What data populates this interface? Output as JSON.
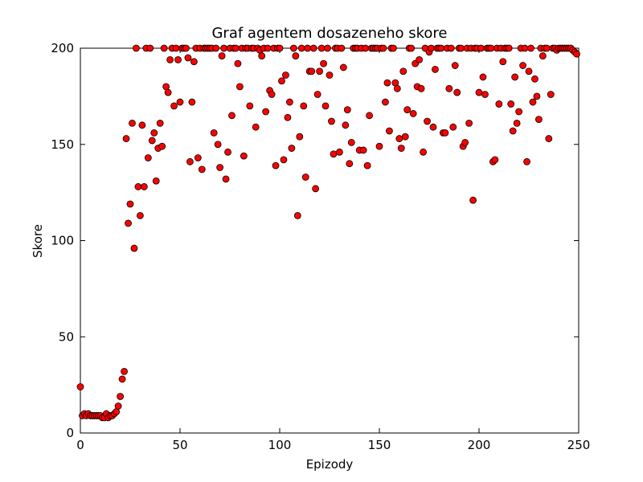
{
  "chart_data": {
    "type": "scatter",
    "title": "Graf agentem dosazeneho skore",
    "xlabel": "Epizody",
    "ylabel": "Skore",
    "x": [
      0,
      1,
      2,
      3,
      4,
      5,
      6,
      7,
      8,
      9,
      10,
      11,
      12,
      13,
      14,
      15,
      16,
      17,
      18,
      19,
      20,
      21,
      22,
      23,
      24,
      25,
      26,
      27,
      28,
      29,
      30,
      31,
      32,
      33,
      34,
      35,
      36,
      37,
      38,
      39,
      40,
      41,
      42,
      43,
      44,
      45,
      46,
      47,
      48,
      49,
      50,
      51,
      52,
      53,
      54,
      55,
      56,
      57,
      58,
      59,
      60,
      61,
      62,
      63,
      64,
      65,
      66,
      67,
      68,
      69,
      70,
      71,
      72,
      73,
      74,
      75,
      76,
      77,
      78,
      79,
      80,
      81,
      82,
      83,
      84,
      85,
      86,
      87,
      88,
      89,
      90,
      91,
      92,
      93,
      94,
      95,
      96,
      97,
      98,
      99,
      100,
      101,
      102,
      103,
      104,
      105,
      106,
      107,
      108,
      109,
      110,
      111,
      112,
      113,
      114,
      115,
      116,
      117,
      118,
      119,
      120,
      121,
      122,
      123,
      124,
      125,
      126,
      127,
      128,
      129,
      130,
      131,
      132,
      133,
      134,
      135,
      136,
      137,
      138,
      139,
      140,
      141,
      142,
      143,
      144,
      145,
      146,
      147,
      148,
      149,
      150,
      151,
      152,
      153,
      154,
      155,
      156,
      157,
      158,
      159,
      160,
      161,
      162,
      163,
      164,
      165,
      166,
      167,
      168,
      169,
      170,
      171,
      172,
      173,
      174,
      175,
      176,
      177,
      178,
      179,
      180,
      181,
      182,
      183,
      184,
      185,
      186,
      187,
      188,
      189,
      190,
      191,
      192,
      193,
      194,
      195,
      196,
      197,
      198,
      199,
      200,
      201,
      202,
      203,
      204,
      205,
      206,
      207,
      208,
      209,
      210,
      211,
      212,
      213,
      214,
      215,
      216,
      217,
      218,
      219,
      220,
      221,
      222,
      223,
      224,
      225,
      226,
      227,
      228,
      229,
      230,
      231,
      232,
      233,
      234,
      235,
      236,
      237,
      238,
      239,
      240,
      241,
      242,
      243,
      244,
      245,
      246,
      247,
      248,
      249
    ],
    "values": [
      24,
      9,
      10,
      9,
      10,
      9,
      9,
      9,
      9,
      9,
      9,
      8,
      8,
      10,
      8,
      9,
      9,
      10,
      11,
      14,
      19,
      28,
      32,
      153,
      109,
      119,
      161,
      96,
      200,
      128,
      113,
      160,
      128,
      200,
      143,
      200,
      152,
      156,
      131,
      148,
      161,
      149,
      200,
      180,
      177,
      194,
      200,
      170,
      200,
      194,
      172,
      200,
      200,
      200,
      195,
      141,
      172,
      193,
      200,
      143,
      200,
      137,
      200,
      200,
      200,
      200,
      200,
      156,
      200,
      150,
      138,
      196,
      200,
      132,
      146,
      200,
      165,
      200,
      200,
      192,
      180,
      200,
      144,
      200,
      200,
      170,
      200,
      200,
      159,
      200,
      199,
      196,
      200,
      167,
      200,
      178,
      176,
      200,
      139,
      200,
      200,
      183,
      142,
      186,
      164,
      172,
      148,
      200,
      196,
      113,
      154,
      200,
      170,
      133,
      200,
      188,
      188,
      200,
      127,
      176,
      188,
      200,
      192,
      170,
      200,
      186,
      162,
      145,
      200,
      200,
      146,
      200,
      190,
      160,
      168,
      140,
      151,
      200,
      200,
      200,
      147,
      200,
      147,
      200,
      139,
      165,
      200,
      200,
      200,
      200,
      149,
      200,
      200,
      172,
      182,
      157,
      200,
      200,
      182,
      179,
      153,
      148,
      188,
      154,
      168,
      200,
      200,
      166,
      192,
      180,
      194,
      179,
      146,
      200,
      162,
      198,
      200,
      159,
      189,
      200,
      200,
      200,
      156,
      156,
      200,
      179,
      200,
      159,
      191,
      177,
      200,
      200,
      149,
      151,
      200,
      161,
      200,
      121,
      200,
      200,
      177,
      200,
      185,
      176,
      200,
      200,
      200,
      141,
      142,
      200,
      171,
      200,
      193,
      200,
      200,
      200,
      171,
      157,
      185,
      161,
      167,
      200,
      191,
      200,
      141,
      188,
      200,
      172,
      184,
      175,
      163,
      200,
      196,
      200,
      200,
      153,
      176,
      200,
      200,
      199,
      200,
      200,
      200,
      200,
      200,
      200,
      200,
      199,
      198,
      197
    ],
    "color": "#ff0000",
    "xlim": [
      0,
      250
    ],
    "ylim": [
      0,
      200
    ],
    "xticks": [
      0,
      50,
      100,
      150,
      200,
      250
    ],
    "yticks": [
      0,
      50,
      100,
      150,
      200
    ]
  }
}
